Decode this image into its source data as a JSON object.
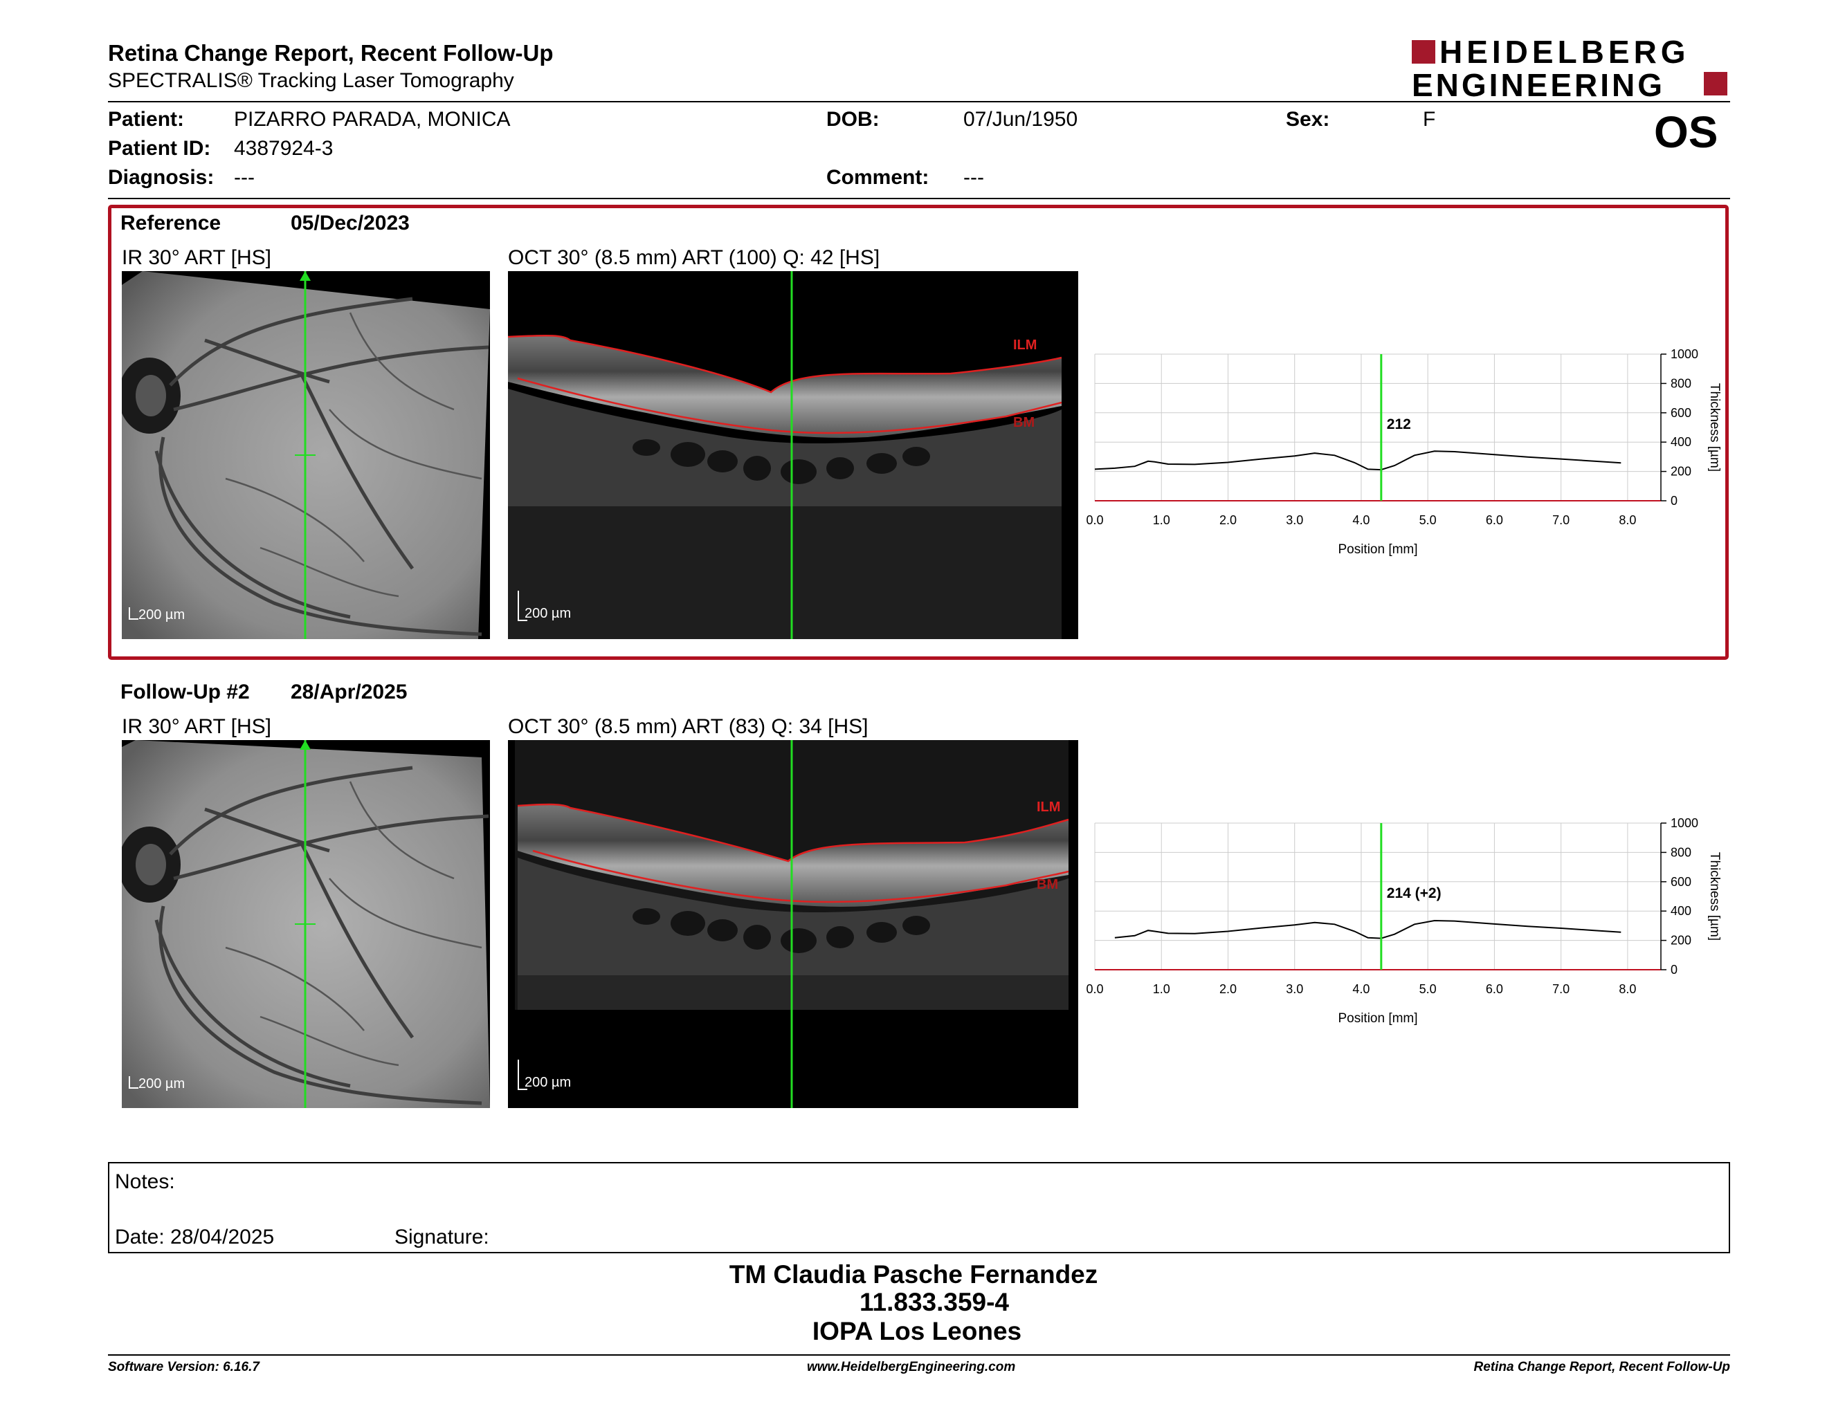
{
  "header": {
    "title": "Retina Change Report, Recent Follow-Up",
    "subtitle": "SPECTRALIS® Tracking Laser Tomography",
    "logo_line1": "HEIDELBERG",
    "logo_line2": "ENGINEERING",
    "brand_color": "#a3182b"
  },
  "patient": {
    "patient_label": "Patient:",
    "patient_value": "PIZARRO PARADA, MONICA",
    "id_label": "Patient ID:",
    "id_value": "4387924-3",
    "diagnosis_label": "Diagnosis:",
    "diagnosis_value": "---",
    "dob_label": "DOB:",
    "dob_value": "07/Jun/1950",
    "comment_label": "Comment:",
    "comment_value": "---",
    "sex_label": "Sex:",
    "sex_value": "F",
    "eye": "OS"
  },
  "reference": {
    "label": "Reference",
    "date": "05/Dec/2023",
    "ir_caption": "IR 30° ART [HS]",
    "oct_caption": "OCT 30° (8.5 mm) ART (100) Q: 42 [HS]",
    "ir_scale": "200 µm",
    "oct_scale": "200 µm",
    "ilm_label": "ILM",
    "bm_label": "BM"
  },
  "followup": {
    "label": "Follow-Up #2",
    "date": "28/Apr/2025",
    "ir_caption": "IR 30° ART [HS]",
    "oct_caption": "OCT 30° (8.5 mm) ART (83) Q: 34 [HS]",
    "ir_scale": "200 µm",
    "oct_scale": "200 µm",
    "ilm_label": "ILM",
    "bm_label": "BM"
  },
  "chart_data": [
    {
      "type": "line",
      "xlabel": "Position [mm]",
      "ylabel": "Thickness [µm]",
      "xlim": [
        0,
        8.5
      ],
      "ylim": [
        0,
        1000
      ],
      "xticks": [
        "0.0",
        "1.0",
        "2.0",
        "3.0",
        "4.0",
        "5.0",
        "6.0",
        "7.0",
        "8.0"
      ],
      "yticks": [
        "0",
        "200",
        "400",
        "600",
        "800",
        "1000"
      ],
      "grid": true,
      "cursor_x": 4.3,
      "cursor_label": "212",
      "cursor_color": "#22dd22",
      "series": [
        {
          "x": [
            0.0,
            0.3,
            0.6,
            0.8,
            0.9,
            1.1,
            1.5,
            2.0,
            2.5,
            3.0,
            3.3,
            3.6,
            3.9,
            4.1,
            4.3,
            4.5,
            4.8,
            5.1,
            5.4,
            6.0,
            6.5,
            7.0,
            7.5,
            7.9
          ],
          "y": [
            215,
            222,
            235,
            270,
            265,
            250,
            248,
            262,
            285,
            305,
            325,
            310,
            260,
            215,
            212,
            240,
            310,
            338,
            335,
            315,
            298,
            285,
            270,
            258
          ]
        }
      ]
    },
    {
      "type": "line",
      "xlabel": "Position [mm]",
      "ylabel": "Thickness [µm]",
      "xlim": [
        0,
        8.5
      ],
      "ylim": [
        0,
        1000
      ],
      "xticks": [
        "0.0",
        "1.0",
        "2.0",
        "3.0",
        "4.0",
        "5.0",
        "6.0",
        "7.0",
        "8.0"
      ],
      "yticks": [
        "0",
        "200",
        "400",
        "600",
        "800",
        "1000"
      ],
      "grid": true,
      "cursor_x": 4.3,
      "cursor_label": "214 (+2)",
      "cursor_color": "#22dd22",
      "series": [
        {
          "x": [
            0.3,
            0.6,
            0.8,
            0.9,
            1.1,
            1.5,
            2.0,
            2.5,
            3.0,
            3.3,
            3.6,
            3.9,
            4.1,
            4.3,
            4.5,
            4.8,
            5.1,
            5.4,
            6.0,
            6.5,
            7.0,
            7.5,
            7.9
          ],
          "y": [
            218,
            232,
            268,
            262,
            248,
            246,
            262,
            285,
            305,
            322,
            310,
            262,
            218,
            214,
            242,
            310,
            335,
            332,
            312,
            296,
            283,
            268,
            256
          ]
        }
      ]
    }
  ],
  "notes": {
    "notes_label": "Notes:",
    "date_text": "Date: 28/04/2025",
    "signature_label": "Signature:"
  },
  "signature_block": {
    "line1": "TM Claudia Pasche Fernandez",
    "line2": "11.833.359-4",
    "line3": "IOPA Los Leones"
  },
  "footer": {
    "left": "Software Version: 6.16.7",
    "center": "www.HeidelbergEngineering.com",
    "right": "Retina Change Report, Recent Follow-Up"
  }
}
